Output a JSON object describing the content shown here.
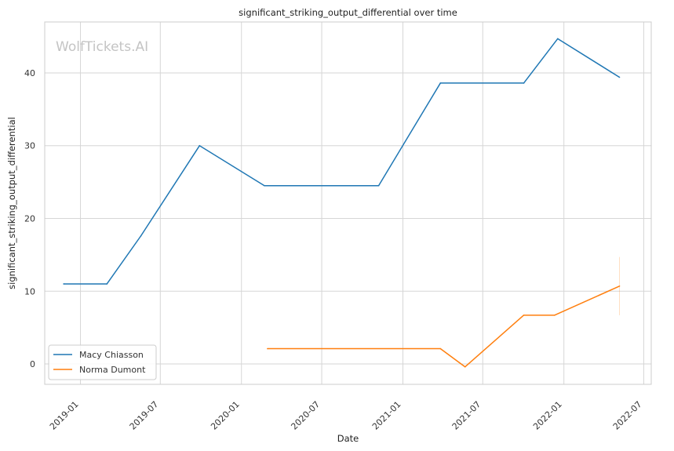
{
  "chart_data": {
    "type": "line",
    "title": "significant_striking_output_differential over time",
    "xlabel": "Date",
    "ylabel": "significant_striking_output_differential",
    "watermark": "WolfTickets.AI",
    "x_tick_labels": [
      "2019-01",
      "2019-07",
      "2020-01",
      "2020-07",
      "2021-01",
      "2021-07",
      "2022-01",
      "2022-07"
    ],
    "x_ticks": [
      "2019-01-01",
      "2019-07-01",
      "2020-01-01",
      "2020-07-01",
      "2021-01-01",
      "2021-07-01",
      "2022-01-01",
      "2022-07-01"
    ],
    "y_ticks": [
      0,
      10,
      20,
      30,
      40
    ],
    "xlim": [
      "2018-10-12",
      "2022-07-18"
    ],
    "ylim": [
      -2.8,
      47.0
    ],
    "grid": true,
    "legend_position": "lower-left",
    "series": [
      {
        "name": "Macy Chiasson",
        "color": "#1f77b4",
        "points": [
          {
            "x": "2018-11-24",
            "y": 11.0
          },
          {
            "x": "2019-03-02",
            "y": 11.0
          },
          {
            "x": "2019-05-18",
            "y": 17.6
          },
          {
            "x": "2019-09-28",
            "y": 30.0
          },
          {
            "x": "2020-02-22",
            "y": 24.5
          },
          {
            "x": "2020-11-07",
            "y": 24.5
          },
          {
            "x": "2021-03-27",
            "y": 38.6
          },
          {
            "x": "2021-10-02",
            "y": 38.6
          },
          {
            "x": "2021-12-18",
            "y": 44.7
          },
          {
            "x": "2022-05-07",
            "y": 39.4
          }
        ]
      },
      {
        "name": "Norma Dumont",
        "color": "#ff7f0e",
        "points": [
          {
            "x": "2020-02-29",
            "y": 2.1
          },
          {
            "x": "2021-03-27",
            "y": 2.1
          },
          {
            "x": "2021-05-22",
            "y": -0.4
          },
          {
            "x": "2021-10-02",
            "y": 6.7
          },
          {
            "x": "2021-12-11",
            "y": 6.7
          },
          {
            "x": "2022-05-07",
            "y": 10.7
          }
        ],
        "error_band": {
          "x": "2022-05-07",
          "low": 6.7,
          "high": 14.7
        }
      }
    ]
  }
}
